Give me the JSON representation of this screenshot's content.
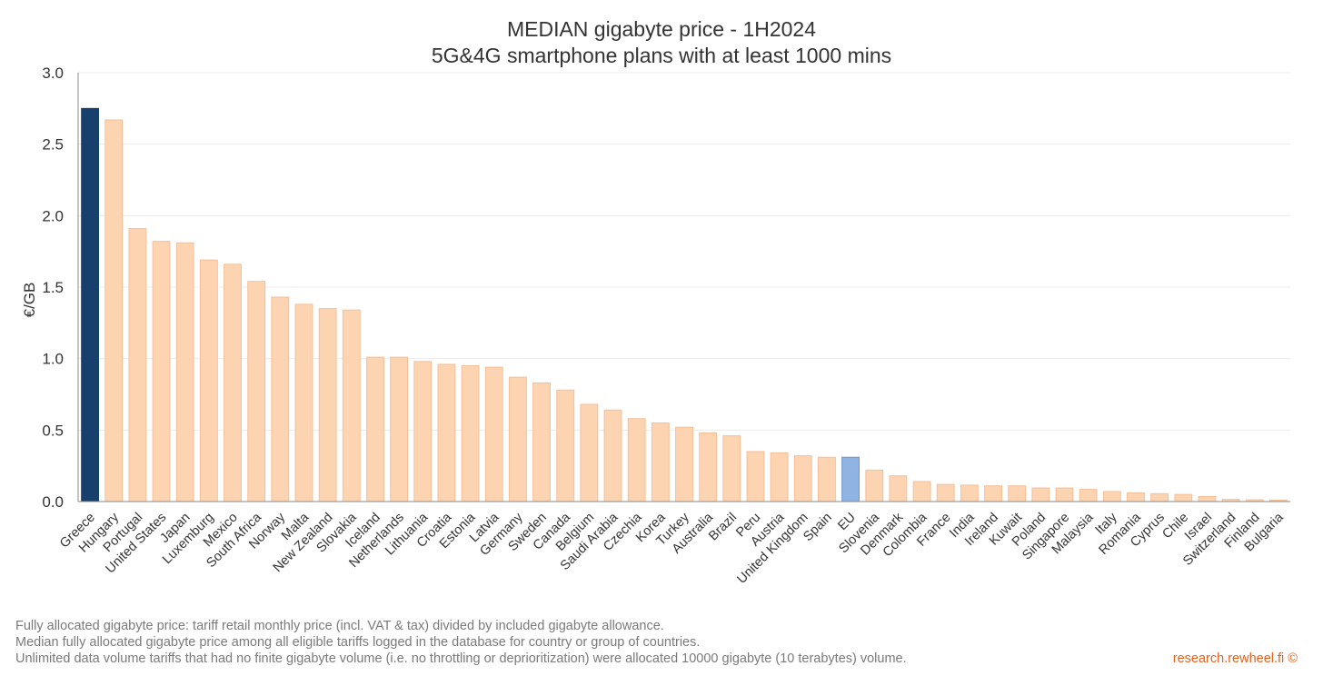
{
  "chart_data": {
    "type": "bar",
    "title": [
      "MEDIAN gigabyte price - 1H2024",
      "5G&4G smartphone plans with at least 1000 mins"
    ],
    "ylabel": "€/GB",
    "xlabel": "",
    "ylim": [
      0,
      3.0
    ],
    "yticks": [
      "0.0",
      "0.5",
      "1.0",
      "1.5",
      "2.0",
      "2.5",
      "3.0"
    ],
    "grid": true,
    "categories": [
      "Greece",
      "Hungary",
      "Portugal",
      "United States",
      "Japan",
      "Luxemburg",
      "Mexico",
      "South Africa",
      "Norway",
      "Malta",
      "New Zealand",
      "Slovakia",
      "Iceland",
      "Netherlands",
      "Lithuania",
      "Croatia",
      "Estonia",
      "Latvia",
      "Germany",
      "Sweden",
      "Canada",
      "Belgium",
      "Saudi Arabia",
      "Czechia",
      "Korea",
      "Turkey",
      "Australia",
      "Brazil",
      "Peru",
      "Austria",
      "United Kingdom",
      "Spain",
      "EU",
      "Slovenia",
      "Denmark",
      "Colombia",
      "France",
      "India",
      "Ireland",
      "Kuwait",
      "Poland",
      "Singapore",
      "Malaysia",
      "Italy",
      "Romania",
      "Cyprus",
      "Chile",
      "Israel",
      "Switzerland",
      "Finland",
      "Bulgaria"
    ],
    "values": [
      2.75,
      2.67,
      1.91,
      1.82,
      1.81,
      1.69,
      1.66,
      1.54,
      1.43,
      1.38,
      1.35,
      1.34,
      1.01,
      1.01,
      0.98,
      0.96,
      0.95,
      0.94,
      0.87,
      0.83,
      0.78,
      0.68,
      0.64,
      0.58,
      0.55,
      0.52,
      0.48,
      0.46,
      0.35,
      0.34,
      0.32,
      0.31,
      0.31,
      0.22,
      0.18,
      0.14,
      0.12,
      0.115,
      0.11,
      0.11,
      0.095,
      0.095,
      0.085,
      0.07,
      0.06,
      0.055,
      0.05,
      0.035,
      0.015,
      0.012,
      0.01
    ],
    "colors": {
      "default": "#fdd4b2",
      "default_stroke": "#f5bf97",
      "highlight": "#17406d",
      "eu": "#8fb4e3",
      "eu_stroke": "#6f95c9",
      "grid": "#ececec",
      "axis": "#888888"
    },
    "highlight_category": "Greece",
    "eu_category": "EU"
  },
  "footnotes": [
    "Fully allocated gigabyte price: tariff retail monthly price (incl. VAT & tax) divided by included gigabyte allowance.",
    "Median fully allocated gigabyte price among all eligible tariffs logged in the database for country or group of countries.",
    "Unlimited data volume tariffs that had no finite gigabyte volume (i.e. no throttling or deprioritization) were allocated 10000 gigabyte (10 terabytes) volume."
  ],
  "credit": "research.rewheel.fi ©"
}
